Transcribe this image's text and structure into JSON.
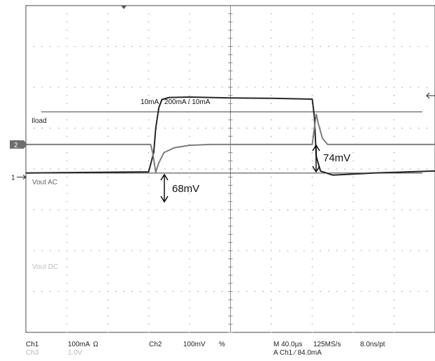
{
  "chart_data": {
    "type": "line",
    "x_unit": "µs",
    "x_range": [
      -200,
      200
    ],
    "grid": true,
    "grid_divisions": {
      "x": 10,
      "y": 8
    },
    "channels": [
      {
        "marker": "1",
        "label": "Iload",
        "color": "#262626",
        "offset_div": -0.8,
        "scale_per_div": "100mA",
        "points": [
          [
            -200,
            0.1
          ],
          [
            -80,
            0.13
          ],
          [
            -75,
            0.6
          ],
          [
            -73,
            1.2
          ],
          [
            -70,
            1.7
          ],
          [
            -67,
            1.9
          ],
          [
            -60,
            1.95
          ],
          [
            -40,
            1.96
          ],
          [
            0,
            1.94
          ],
          [
            40,
            1.93
          ],
          [
            80,
            1.91
          ],
          [
            82,
            1.5
          ],
          [
            84,
            0.5
          ],
          [
            88,
            0.15
          ],
          [
            100,
            0.05
          ],
          [
            140,
            0.1
          ],
          [
            200,
            0.15
          ]
        ]
      },
      {
        "marker": "2",
        "label": "Vout AC",
        "color": "#7d7d7d",
        "offset_div": 0.0,
        "scale_per_div": "100mV",
        "points": [
          [
            -200,
            0
          ],
          [
            -78,
            0
          ],
          [
            -76,
            -0.2
          ],
          [
            -73,
            -0.68
          ],
          [
            -70,
            -0.45
          ],
          [
            -65,
            -0.2
          ],
          [
            -55,
            -0.08
          ],
          [
            -40,
            -0.02
          ],
          [
            -20,
            0
          ],
          [
            80,
            0
          ],
          [
            82,
            0.4
          ],
          [
            84,
            0.74
          ],
          [
            86,
            0.5
          ],
          [
            90,
            0.15
          ],
          [
            95,
            0
          ],
          [
            200,
            0
          ]
        ]
      },
      {
        "marker": "3",
        "label": "Vout DC",
        "color": "#c4c4c4",
        "offset_div": -5.6,
        "scale_per_div": "1.0V",
        "points": [
          [
            -200,
            0
          ],
          [
            -78,
            0
          ],
          [
            -76,
            -0.04
          ],
          [
            -72,
            0
          ],
          [
            80,
            0
          ],
          [
            83,
            0.03
          ],
          [
            86,
            0
          ],
          [
            200,
            0
          ]
        ]
      }
    ],
    "annotations": {
      "load_step": "10mA / 200mA / 10mA",
      "overshoot": "74mV",
      "undershoot": "68mV"
    },
    "status": {
      "ch1_name": "Ch1",
      "ch1_scale": "100mA",
      "ch1_sym": "Ω",
      "ch2_name": "Ch2",
      "ch2_scale": "100mV",
      "ch2_sym": "%",
      "ch3_name": "Ch3",
      "ch3_scale": "1.0V",
      "timebase": "M 40.0µs",
      "sample_rate": "125MS/s",
      "resolution": "8.0ns/pt",
      "trigger": "A  Ch1  ⁄  84.0mA"
    }
  }
}
